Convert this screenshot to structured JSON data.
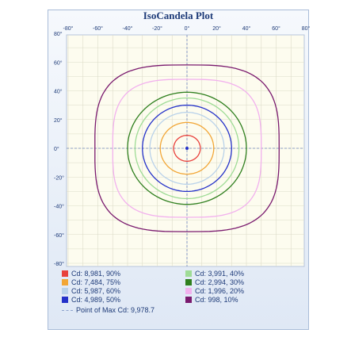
{
  "chart_data": {
    "type": "line",
    "title": "IsoCandela Plot",
    "xlim": [
      -80,
      80
    ],
    "ylim": [
      -80,
      80
    ],
    "x_ticks": [
      "-80°",
      "-60°",
      "-40°",
      "-20°",
      "0°",
      "20°",
      "40°",
      "60°",
      "80°"
    ],
    "y_ticks": [
      "80°",
      "60°",
      "40°",
      "20°",
      "0°",
      "-20°",
      "-40°",
      "-60°",
      "-80°"
    ],
    "grid": true,
    "series": [
      {
        "name": "Cd: 8,981, 90%",
        "color": "#e8413c",
        "half_width_deg": 9,
        "half_height_deg": 9,
        "shape": "circle"
      },
      {
        "name": "Cd: 7,484, 75%",
        "color": "#f2a636",
        "half_width_deg": 18,
        "half_height_deg": 18,
        "shape": "circle"
      },
      {
        "name": "Cd: 5,987, 60%",
        "color": "#b9d2ea",
        "half_width_deg": 25,
        "half_height_deg": 25,
        "shape": "circle"
      },
      {
        "name": "Cd: 4,989, 50%",
        "color": "#2431c9",
        "half_width_deg": 30,
        "half_height_deg": 30,
        "shape": "circle"
      },
      {
        "name": "Cd: 3,991, 40%",
        "color": "#9fdc96",
        "half_width_deg": 35,
        "half_height_deg": 35,
        "shape": "circle"
      },
      {
        "name": "Cd: 2,994, 30%",
        "color": "#2f7f1e",
        "half_width_deg": 40,
        "half_height_deg": 39,
        "shape": "circle"
      },
      {
        "name": "Cd: 1,996, 20%",
        "color": "#f2b1ee",
        "half_width_deg": 50,
        "half_height_deg": 48,
        "shape": "squircle"
      },
      {
        "name": "Cd: 998, 10%",
        "color": "#7a1a6e",
        "half_width_deg": 62,
        "half_height_deg": 58,
        "shape": "squircle"
      }
    ],
    "max_point": {
      "label": "Point of Max Cd: 9,978.7",
      "x": 0,
      "y": 0
    }
  }
}
